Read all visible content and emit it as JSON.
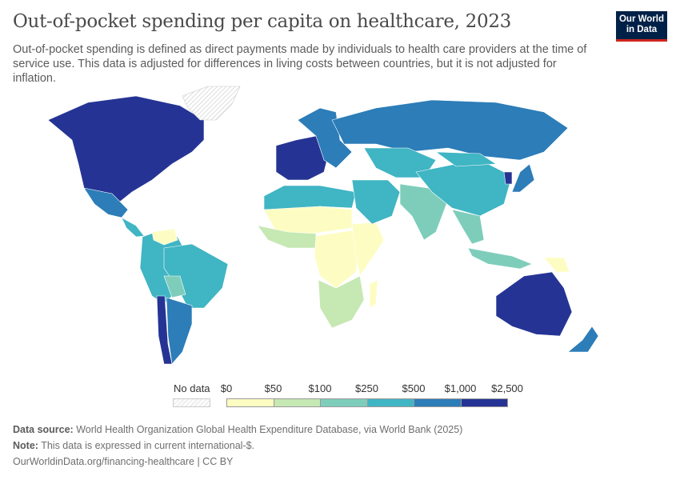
{
  "header": {
    "title": "Out-of-pocket spending per capita on healthcare, 2023",
    "subtitle": "Out-of-pocket spending is defined as direct payments made by individuals to health care providers at the time of service use. This data is adjusted for differences in living costs between countries, but it is not adjusted for inflation.",
    "logo_line1": "Our World",
    "logo_line2": "in Data"
  },
  "legend": {
    "no_data_label": "No data",
    "tick_labels": [
      "$0",
      "$50",
      "$100",
      "$250",
      "$500",
      "$1,000",
      "$2,500"
    ],
    "bins": [
      {
        "range": "$0–$50",
        "color": "#fdfdc3"
      },
      {
        "range": "$50–$100",
        "color": "#c6e8b3"
      },
      {
        "range": "$100–$250",
        "color": "#7ecdbb"
      },
      {
        "range": "$250–$500",
        "color": "#40b5c4"
      },
      {
        "range": "$500–$1,000",
        "color": "#2c7db8"
      },
      {
        "range": "$1,000–$2,500",
        "color": "#253494"
      }
    ],
    "no_data_color": "#eeeeee"
  },
  "map": {
    "regions": [
      {
        "name": "north-america",
        "bin": 5
      },
      {
        "name": "greenland",
        "bin": -1
      },
      {
        "name": "mexico",
        "bin": 4
      },
      {
        "name": "central-america",
        "bin": 3
      },
      {
        "name": "south-america-north",
        "bin": 3
      },
      {
        "name": "venezuela",
        "bin": 0
      },
      {
        "name": "brazil",
        "bin": 3
      },
      {
        "name": "bolivia",
        "bin": 2
      },
      {
        "name": "chile",
        "bin": 5
      },
      {
        "name": "argentina",
        "bin": 4
      },
      {
        "name": "western-europe",
        "bin": 5
      },
      {
        "name": "eastern-europe",
        "bin": 4
      },
      {
        "name": "russia",
        "bin": 4
      },
      {
        "name": "central-asia",
        "bin": 3
      },
      {
        "name": "north-africa",
        "bin": 3
      },
      {
        "name": "sahel",
        "bin": 0
      },
      {
        "name": "west-africa",
        "bin": 1
      },
      {
        "name": "central-africa",
        "bin": 0
      },
      {
        "name": "east-africa",
        "bin": 0
      },
      {
        "name": "southern-africa",
        "bin": 1
      },
      {
        "name": "madagascar",
        "bin": 0
      },
      {
        "name": "middle-east",
        "bin": 3
      },
      {
        "name": "india",
        "bin": 2
      },
      {
        "name": "china",
        "bin": 3
      },
      {
        "name": "mongolia",
        "bin": 3
      },
      {
        "name": "southeast-asia",
        "bin": 2
      },
      {
        "name": "indonesia",
        "bin": 2
      },
      {
        "name": "japan",
        "bin": 4
      },
      {
        "name": "korea",
        "bin": 5
      },
      {
        "name": "papua-new-guinea",
        "bin": 0
      },
      {
        "name": "australia",
        "bin": 5
      },
      {
        "name": "new-zealand",
        "bin": 4
      }
    ]
  },
  "footer": {
    "source_label": "Data source:",
    "source_text": "World Health Organization Global Health Expenditure Database, via World Bank (2025)",
    "note_label": "Note:",
    "note_text": "This data is expressed in current international-$.",
    "url": "OurWorldinData.org/financing-healthcare | CC BY"
  }
}
